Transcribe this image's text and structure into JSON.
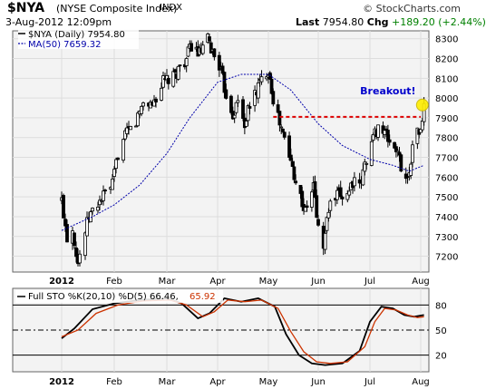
{
  "header": {
    "ticker": "$NYA",
    "name": "(NYSE Composite Index)",
    "exchange": "INDX",
    "brand": "© StockCharts.com",
    "datetime": "3-Aug-2012 12:09pm",
    "last_label": "Last",
    "last_value": "7954.80",
    "chg_label": "Chg",
    "chg_value": "+189.20 (+2.44%)"
  },
  "chart_data": [
    {
      "type": "candlestick",
      "legend": [
        {
          "label": "$NYA (Daily) 7954.80",
          "color": "#000000"
        },
        {
          "label": "MA(50) 7659.32",
          "color": "#0000aa"
        }
      ],
      "y_ticks": [
        7200,
        7300,
        7400,
        7500,
        7600,
        7700,
        7800,
        7900,
        8000,
        8100,
        8200,
        8300
      ],
      "ylim": [
        7120,
        8340
      ],
      "x_tick_labels": [
        "2012",
        "Feb",
        "Mar",
        "Apr",
        "May",
        "Jun",
        "Jul",
        "Aug"
      ],
      "price_path": [
        [
          "2012-01-03",
          7480
        ],
        [
          "2012-01-06",
          7300
        ],
        [
          "2012-01-09",
          7340
        ],
        [
          "2012-01-12",
          7170
        ],
        [
          "2012-01-14",
          7250
        ],
        [
          "2012-01-18",
          7400
        ],
        [
          "2012-01-24",
          7480
        ],
        [
          "2012-01-31",
          7560
        ],
        [
          "2012-02-03",
          7720
        ],
        [
          "2012-02-08",
          7820
        ],
        [
          "2012-02-13",
          7880
        ],
        [
          "2012-02-17",
          7980
        ],
        [
          "2012-02-22",
          7970
        ],
        [
          "2012-02-28",
          8080
        ],
        [
          "2012-03-05",
          8100
        ],
        [
          "2012-03-09",
          8160
        ],
        [
          "2012-03-13",
          8200
        ],
        [
          "2012-03-16",
          8270
        ],
        [
          "2012-03-21",
          8220
        ],
        [
          "2012-03-26",
          8290
        ],
        [
          "2012-03-29",
          8230
        ],
        [
          "2012-04-02",
          8170
        ],
        [
          "2012-04-05",
          8050
        ],
        [
          "2012-04-10",
          7920
        ],
        [
          "2012-04-13",
          7980
        ],
        [
          "2012-04-17",
          7870
        ],
        [
          "2012-04-20",
          7960
        ],
        [
          "2012-04-25",
          8060
        ],
        [
          "2012-05-01",
          8150
        ],
        [
          "2012-05-04",
          8000
        ],
        [
          "2012-05-08",
          7870
        ],
        [
          "2012-05-11",
          7790
        ],
        [
          "2012-05-16",
          7650
        ],
        [
          "2012-05-21",
          7500
        ],
        [
          "2012-05-24",
          7420
        ],
        [
          "2012-05-29",
          7560
        ],
        [
          "2012-06-01",
          7340
        ],
        [
          "2012-06-04",
          7250
        ],
        [
          "2012-06-07",
          7440
        ],
        [
          "2012-06-12",
          7500
        ],
        [
          "2012-06-18",
          7520
        ],
        [
          "2012-06-21",
          7580
        ],
        [
          "2012-06-25",
          7540
        ],
        [
          "2012-06-29",
          7700
        ],
        [
          "2012-07-03",
          7800
        ],
        [
          "2012-07-06",
          7860
        ],
        [
          "2012-07-10",
          7820
        ],
        [
          "2012-07-13",
          7780
        ],
        [
          "2012-07-17",
          7740
        ],
        [
          "2012-07-20",
          7660
        ],
        [
          "2012-07-24",
          7580
        ],
        [
          "2012-07-26",
          7700
        ],
        [
          "2012-07-30",
          7850
        ],
        [
          "2012-08-01",
          7820
        ],
        [
          "2012-08-03",
          7955
        ]
      ],
      "ma50_path": [
        [
          "2012-01-03",
          7330
        ],
        [
          "2012-01-20",
          7400
        ],
        [
          "2012-02-01",
          7460
        ],
        [
          "2012-02-15",
          7560
        ],
        [
          "2012-03-01",
          7720
        ],
        [
          "2012-03-15",
          7900
        ],
        [
          "2012-04-01",
          8080
        ],
        [
          "2012-04-15",
          8120
        ],
        [
          "2012-05-01",
          8120
        ],
        [
          "2012-05-15",
          8040
        ],
        [
          "2012-06-01",
          7870
        ],
        [
          "2012-06-15",
          7760
        ],
        [
          "2012-07-01",
          7690
        ],
        [
          "2012-07-15",
          7660
        ],
        [
          "2012-07-25",
          7630
        ],
        [
          "2012-08-03",
          7660
        ]
      ],
      "breakout_line": {
        "value": 7905,
        "from": "2012-05-04",
        "to": "2012-08-01",
        "color": "#dd0000"
      },
      "annotation": {
        "text": "Breakout!",
        "date": "2012-07-12",
        "value": 8020,
        "color": "#0000cc"
      },
      "highlight": {
        "date": "2012-08-02",
        "value": 7965,
        "color": "#ffee00"
      }
    },
    {
      "type": "line",
      "legend": [
        {
          "label": "Full STO %K(20,10) %D(5) 66.46,",
          "color": "#000000"
        },
        {
          "label": "65.92",
          "color": "#cc3300"
        }
      ],
      "y_ticks": [
        20,
        50,
        80
      ],
      "ylim": [
        0,
        100
      ],
      "reference_lines": [
        20,
        50,
        80
      ],
      "series": [
        {
          "values": [
            [
              "2012-01-03",
              40
            ],
            [
              "2012-01-10",
              52
            ],
            [
              "2012-01-20",
              75
            ],
            [
              "2012-02-01",
              82
            ],
            [
              "2012-02-15",
              86
            ],
            [
              "2012-03-01",
              88
            ],
            [
              "2012-03-10",
              82
            ],
            [
              "2012-03-20",
              64
            ],
            [
              "2012-03-27",
              70
            ],
            [
              "2012-04-05",
              88
            ],
            [
              "2012-04-15",
              84
            ],
            [
              "2012-04-25",
              88
            ],
            [
              "2012-05-05",
              78
            ],
            [
              "2012-05-12",
              45
            ],
            [
              "2012-05-20",
              20
            ],
            [
              "2012-05-28",
              10
            ],
            [
              "2012-06-05",
              8
            ],
            [
              "2012-06-15",
              10
            ],
            [
              "2012-06-25",
              25
            ],
            [
              "2012-07-01",
              60
            ],
            [
              "2012-07-08",
              78
            ],
            [
              "2012-07-15",
              76
            ],
            [
              "2012-07-22",
              68
            ],
            [
              "2012-07-28",
              66
            ],
            [
              "2012-08-03",
              68
            ]
          ]
        },
        {
          "values": [
            [
              "2012-01-03",
              42
            ],
            [
              "2012-01-12",
              50
            ],
            [
              "2012-01-22",
              70
            ],
            [
              "2012-02-03",
              80
            ],
            [
              "2012-02-17",
              85
            ],
            [
              "2012-03-03",
              86
            ],
            [
              "2012-03-13",
              80
            ],
            [
              "2012-03-23",
              66
            ],
            [
              "2012-03-30",
              72
            ],
            [
              "2012-04-07",
              86
            ],
            [
              "2012-04-17",
              84
            ],
            [
              "2012-04-27",
              86
            ],
            [
              "2012-05-07",
              76
            ],
            [
              "2012-05-15",
              48
            ],
            [
              "2012-05-23",
              24
            ],
            [
              "2012-05-31",
              12
            ],
            [
              "2012-06-08",
              10
            ],
            [
              "2012-06-18",
              12
            ],
            [
              "2012-06-28",
              30
            ],
            [
              "2012-07-04",
              60
            ],
            [
              "2012-07-10",
              76
            ],
            [
              "2012-07-17",
              74
            ],
            [
              "2012-07-24",
              68
            ],
            [
              "2012-07-30",
              65
            ],
            [
              "2012-08-03",
              66
            ]
          ]
        }
      ]
    }
  ],
  "colors": {
    "panel_bg": "#f3f3f3",
    "candle_body": "#000000",
    "ma50": "#0000aa",
    "gridline": "#dddddd",
    "sto_k": "#000000",
    "sto_d": "#cc3300"
  }
}
